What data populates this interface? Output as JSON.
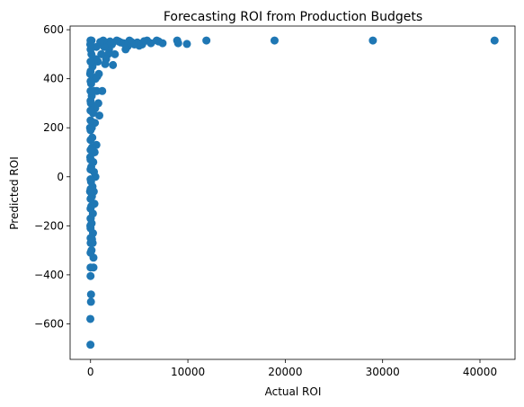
{
  "chart_data": {
    "type": "scatter",
    "title": "Forecasting ROI from Production Budgets",
    "xlabel": "Actual ROI",
    "ylabel": "Predicted ROI",
    "xlim": [
      -2100,
      43600
    ],
    "ylim": [
      -745,
      615
    ],
    "x_ticks": [
      0,
      10000,
      20000,
      30000,
      40000
    ],
    "y_ticks": [
      -600,
      -400,
      -200,
      0,
      200,
      400,
      600
    ],
    "grid": false,
    "marker_color": "#1f77b4",
    "series": [
      {
        "points": [
          [
            41500,
            556
          ],
          [
            29000,
            556
          ],
          [
            18900,
            556
          ],
          [
            11900,
            556
          ],
          [
            9900,
            542
          ],
          [
            9000,
            545
          ],
          [
            8900,
            556
          ],
          [
            7400,
            545
          ],
          [
            7000,
            552
          ],
          [
            6800,
            556
          ],
          [
            6200,
            545
          ],
          [
            5800,
            556
          ],
          [
            5500,
            553
          ],
          [
            5300,
            540
          ],
          [
            5000,
            535
          ],
          [
            4800,
            548
          ],
          [
            4500,
            540
          ],
          [
            4200,
            550
          ],
          [
            4000,
            556
          ],
          [
            3800,
            532
          ],
          [
            3600,
            520
          ],
          [
            3400,
            545
          ],
          [
            3100,
            548
          ],
          [
            2900,
            552
          ],
          [
            2700,
            556
          ],
          [
            2500,
            500
          ],
          [
            2300,
            456
          ],
          [
            2200,
            540
          ],
          [
            2000,
            552
          ],
          [
            1900,
            520
          ],
          [
            1800,
            500
          ],
          [
            1700,
            545
          ],
          [
            1600,
            480
          ],
          [
            1500,
            460
          ],
          [
            1400,
            530
          ],
          [
            1300,
            556
          ],
          [
            1200,
            350
          ],
          [
            1100,
            500
          ],
          [
            1000,
            550
          ],
          [
            900,
            250
          ],
          [
            850,
            420
          ],
          [
            800,
            300
          ],
          [
            750,
            470
          ],
          [
            700,
            410
          ],
          [
            650,
            350
          ],
          [
            600,
            530
          ],
          [
            600,
            130
          ],
          [
            550,
            480
          ],
          [
            500,
            400
          ],
          [
            500,
            0
          ],
          [
            480,
            280
          ],
          [
            450,
            220
          ],
          [
            420,
            100
          ],
          [
            400,
            -110
          ],
          [
            380,
            350
          ],
          [
            350,
            20
          ],
          [
            330,
            -60
          ],
          [
            300,
            -330
          ],
          [
            300,
            -370
          ],
          [
            280,
            60
          ],
          [
            260,
            260
          ],
          [
            250,
            -230
          ],
          [
            240,
            -150
          ],
          [
            220,
            -270
          ],
          [
            200,
            -40
          ],
          [
            200,
            450
          ],
          [
            180,
            160
          ],
          [
            160,
            120
          ],
          [
            150,
            -255
          ],
          [
            140,
            -80
          ],
          [
            130,
            200
          ],
          [
            120,
            330
          ],
          [
            110,
            -190
          ],
          [
            100,
            -300
          ],
          [
            100,
            556
          ],
          [
            90,
            500
          ],
          [
            80,
            -120
          ],
          [
            70,
            40
          ],
          [
            60,
            380
          ],
          [
            50,
            -20
          ],
          [
            50,
            -480
          ],
          [
            40,
            -510
          ],
          [
            30,
            300
          ],
          [
            20,
            -170
          ],
          [
            10,
            -270
          ],
          [
            10,
            556
          ],
          [
            0,
            556
          ],
          [
            0,
            520
          ],
          [
            0,
            470
          ],
          [
            0,
            430
          ],
          [
            0,
            390
          ],
          [
            0,
            350
          ],
          [
            0,
            310
          ],
          [
            0,
            270
          ],
          [
            0,
            230
          ],
          [
            0,
            190
          ],
          [
            0,
            150
          ],
          [
            0,
            110
          ],
          [
            0,
            70
          ],
          [
            0,
            30
          ],
          [
            0,
            -10
          ],
          [
            0,
            -50
          ],
          [
            0,
            -90
          ],
          [
            0,
            -130
          ],
          [
            0,
            -170
          ],
          [
            0,
            -210
          ],
          [
            0,
            -250
          ],
          [
            0,
            -310
          ],
          [
            0,
            -370
          ],
          [
            0,
            -405
          ],
          [
            -20,
            -580
          ],
          [
            -10,
            -685
          ],
          [
            -30,
            540
          ],
          [
            -40,
            420
          ],
          [
            -50,
            200
          ],
          [
            -20,
            -200
          ],
          [
            -30,
            80
          ],
          [
            -50,
            -60
          ]
        ]
      }
    ]
  }
}
